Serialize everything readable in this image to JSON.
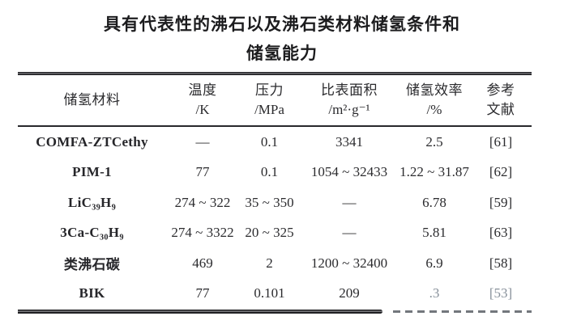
{
  "title": {
    "line1": "具有代表性的沸石以及沸石类材料储氢条件和",
    "line2": "储氢能力"
  },
  "table": {
    "columns": [
      {
        "name": "material",
        "label_line1": "储氢材料",
        "label_line2": ""
      },
      {
        "name": "temperature",
        "label_line1": "温度",
        "label_line2": "/K"
      },
      {
        "name": "pressure",
        "label_line1": "压力",
        "label_line2": "/MPa"
      },
      {
        "name": "surface_area",
        "label_line1": "比表面积",
        "label_line2": "/m²·g⁻¹"
      },
      {
        "name": "efficiency",
        "label_line1": "储氢效率",
        "label_line2": "/%"
      },
      {
        "name": "reference",
        "label_line1": "参考",
        "label_line2": "文献"
      }
    ],
    "rows": [
      {
        "material": "COMFA-ZTCethy",
        "temperature": "—",
        "pressure": "0.1",
        "surface_area": "3341",
        "efficiency": "2.5",
        "reference": "[61]"
      },
      {
        "material": "PIM-1",
        "temperature": "77",
        "pressure": "0.1",
        "surface_area": "1054 ~ 32433",
        "efficiency": "1.22 ~ 31.87",
        "reference": "[62]"
      },
      {
        "material": "LiC₃₉H₉",
        "temperature": "274 ~ 322",
        "pressure": "35 ~ 350",
        "surface_area": "—",
        "efficiency": "6.78",
        "reference": "[59]"
      },
      {
        "material": "3Ca-C₃₀H₉",
        "temperature": "274 ~ 3322",
        "pressure": "20 ~ 325",
        "surface_area": "—",
        "efficiency": "5.81",
        "reference": "[63]"
      },
      {
        "material": "类沸石碳",
        "temperature": "469",
        "pressure": "2",
        "surface_area": "1200 ~ 32400",
        "efficiency": "6.9",
        "reference": "[58]"
      },
      {
        "material": "BIK",
        "temperature": "77",
        "pressure": "0.101",
        "surface_area": "209",
        "efficiency": ".3",
        "reference": "[53]"
      }
    ]
  },
  "colors": {
    "text": "#2b2b2e",
    "title_text": "#1c1c1e",
    "muted_text": "#87909a",
    "rule": "#1f1f22",
    "background": "#ffffff"
  }
}
